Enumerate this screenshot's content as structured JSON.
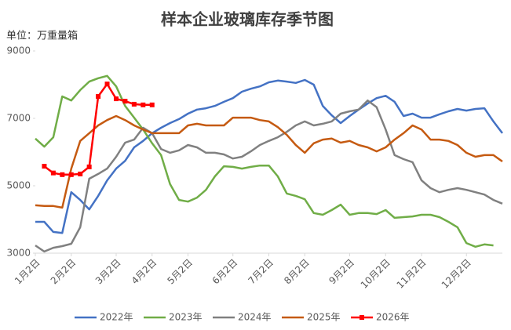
{
  "chart_data": {
    "type": "line",
    "title": "样本企业玻璃库存季节图",
    "y_label": "单位：万重量箱",
    "categories": [
      "1月2日",
      null,
      null,
      null,
      "2月2日",
      null,
      null,
      null,
      null,
      "3月2日",
      null,
      null,
      null,
      "4月2日",
      null,
      null,
      null,
      "5月2日",
      null,
      null,
      null,
      null,
      "6月2日",
      null,
      null,
      null,
      "7月2日",
      null,
      null,
      null,
      "8月2日",
      null,
      null,
      null,
      null,
      "9月2日",
      null,
      null,
      null,
      "10月2日",
      null,
      null,
      null,
      "11月2日",
      null,
      null,
      null,
      null,
      "12月2日",
      null,
      null,
      null,
      null
    ],
    "ylim": [
      3000,
      9000
    ],
    "yticks": [
      3000,
      5000,
      7000,
      9000
    ],
    "legend": "bottom",
    "series": [
      {
        "name": "2022年",
        "color": "#4472c4",
        "values": [
          3930,
          3930,
          3630,
          3600,
          4810,
          4580,
          4300,
          4700,
          5160,
          5510,
          5740,
          6140,
          6330,
          6560,
          6720,
          6860,
          6980,
          7140,
          7260,
          7300,
          7370,
          7490,
          7600,
          7790,
          7880,
          7950,
          8070,
          8120,
          8090,
          8050,
          8140,
          8000,
          7370,
          7090,
          6860,
          7070,
          7260,
          7440,
          7600,
          7670,
          7490,
          7070,
          7140,
          7020,
          7020,
          7120,
          7210,
          7280,
          7230,
          7280,
          7300,
          6910,
          6560
        ]
      },
      {
        "name": "2023年",
        "color": "#70ad47",
        "values": [
          6400,
          6160,
          6440,
          7650,
          7530,
          7840,
          8090,
          8190,
          8260,
          7950,
          7370,
          7020,
          6670,
          6260,
          5910,
          5050,
          4580,
          4530,
          4650,
          4880,
          5280,
          5580,
          5560,
          5510,
          5560,
          5600,
          5600,
          5280,
          4770,
          4700,
          4600,
          4190,
          4140,
          4280,
          4440,
          4140,
          4190,
          4190,
          4160,
          4280,
          4050,
          4070,
          4090,
          4140,
          4140,
          4070,
          3930,
          3770,
          3300,
          3190,
          3260,
          3230,
          null
        ]
      },
      {
        "name": "2024年",
        "color": "#808080",
        "values": [
          3230,
          3050,
          3160,
          3210,
          3280,
          3770,
          5210,
          5350,
          5510,
          5860,
          6280,
          6370,
          6720,
          6560,
          6090,
          5980,
          6050,
          6210,
          6140,
          5980,
          5980,
          5930,
          5810,
          5860,
          6020,
          6210,
          6330,
          6440,
          6600,
          6790,
          6910,
          6790,
          6840,
          6910,
          7140,
          7210,
          7260,
          7530,
          7330,
          6670,
          5910,
          5790,
          5700,
          5160,
          4930,
          4810,
          4880,
          4930,
          4880,
          4810,
          4740,
          4580,
          4470
        ]
      },
      {
        "name": "2025年",
        "color": "#c55a11",
        "values": [
          4420,
          4400,
          4400,
          4350,
          5510,
          6330,
          6560,
          6790,
          6950,
          7070,
          6950,
          6790,
          6670,
          6560,
          6560,
          6560,
          6560,
          6790,
          6840,
          6790,
          6790,
          6790,
          7020,
          7020,
          7020,
          6950,
          6910,
          6740,
          6510,
          6210,
          5980,
          6260,
          6370,
          6400,
          6280,
          6330,
          6210,
          6140,
          6020,
          6140,
          6370,
          6560,
          6790,
          6670,
          6370,
          6370,
          6330,
          6210,
          5980,
          5860,
          5910,
          5910,
          5720
        ]
      },
      {
        "name": "2026年",
        "color": "#ff0000",
        "marker": true,
        "values": [
          null,
          5580,
          5380,
          5330,
          5330,
          5350,
          5560,
          7650,
          8020,
          7580,
          7510,
          7420,
          7400,
          7400,
          null,
          null,
          null,
          null,
          null,
          null,
          null,
          null,
          null,
          null,
          null,
          null,
          null,
          null,
          null,
          null,
          null,
          null,
          null,
          null,
          null,
          null,
          null,
          null,
          null,
          null,
          null,
          null,
          null,
          null,
          null,
          null,
          null,
          null,
          null,
          null,
          null,
          null,
          null
        ]
      }
    ]
  }
}
